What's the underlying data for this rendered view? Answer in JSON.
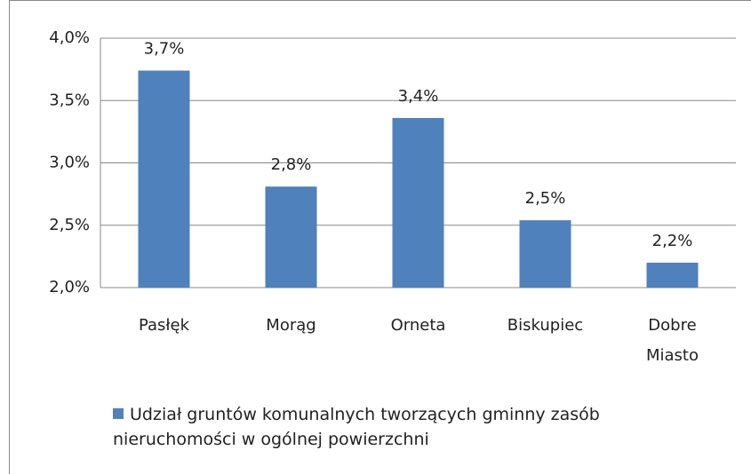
{
  "chart_data": {
    "type": "bar",
    "categories": [
      "Pasłęk",
      "Morąg",
      "Orneta",
      "Biskupiec",
      "Dobre Miasto"
    ],
    "series": [
      {
        "name": "Udział gruntów komunalnych tworzących gminny zasób nieruchomości w ogólnej powierzchni",
        "color": "#4f81bd",
        "values": [
          3.74,
          2.81,
          3.36,
          2.54,
          2.2
        ],
        "value_labels": [
          "3,7%",
          "2,8%",
          "3,4%",
          "2,5%",
          "2,2%"
        ]
      }
    ],
    "ylim": [
      2,
      4
    ],
    "yticks": [
      {
        "value": 2,
        "label": "2,0%"
      },
      {
        "value": 2.5,
        "label": "2,5%"
      },
      {
        "value": 3,
        "label": "3,0%"
      },
      {
        "value": 3.5,
        "label": "3,5%"
      },
      {
        "value": 4,
        "label": "4,0%"
      }
    ],
    "grid": true,
    "legend": "bottom"
  }
}
